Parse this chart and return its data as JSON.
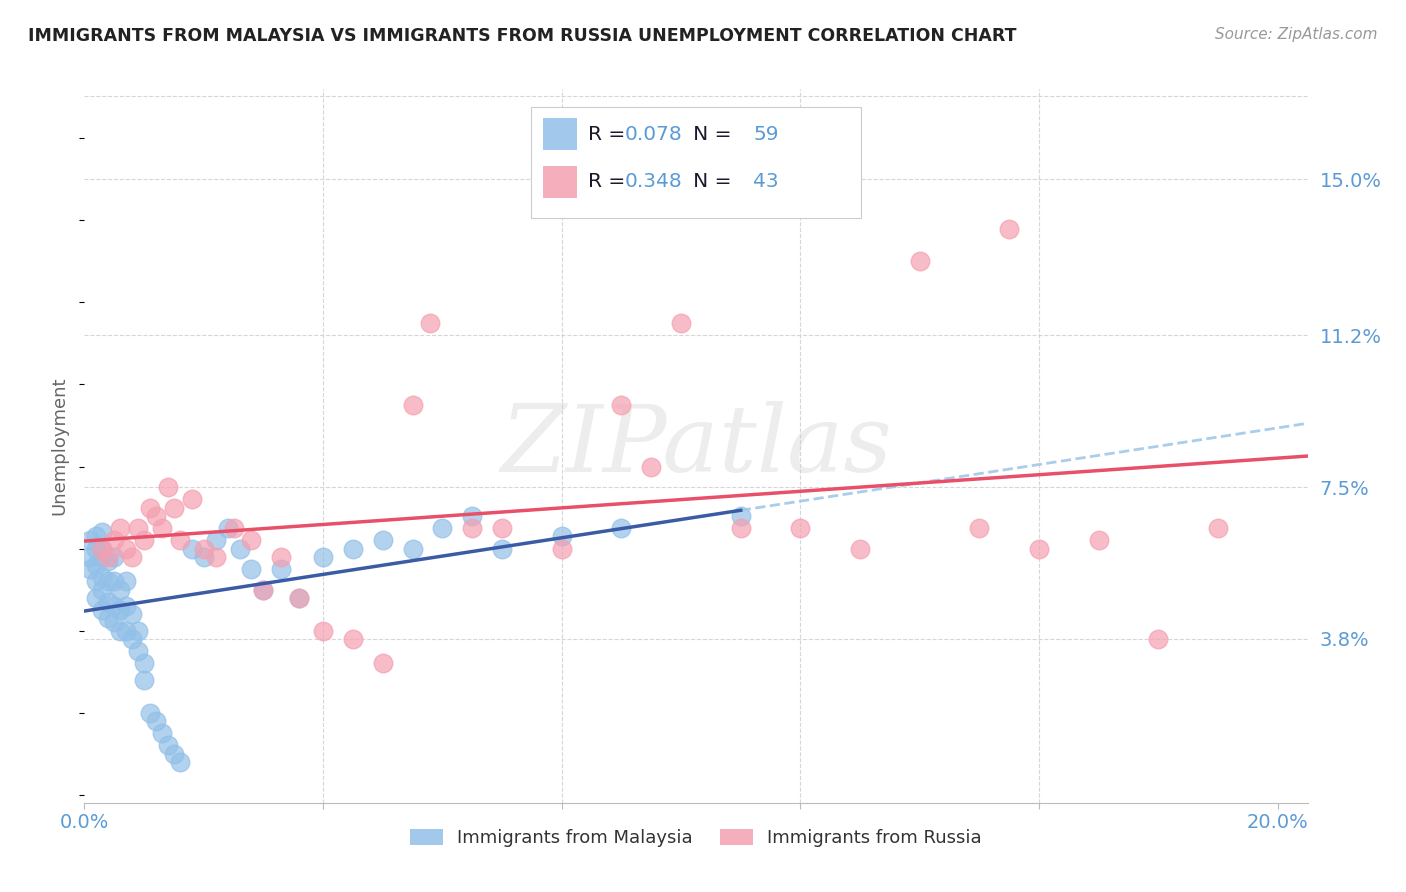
{
  "title": "IMMIGRANTS FROM MALAYSIA VS IMMIGRANTS FROM RUSSIA UNEMPLOYMENT CORRELATION CHART",
  "source": "Source: ZipAtlas.com",
  "ylabel": "Unemployment",
  "watermark": "ZIPatlas",
  "xmin": 0.0,
  "xmax": 0.205,
  "ymin": -0.002,
  "ymax": 0.172,
  "yticks": [
    0.038,
    0.075,
    0.112,
    0.15
  ],
  "ytick_labels": [
    "3.8%",
    "7.5%",
    "11.2%",
    "15.0%"
  ],
  "xticks": [
    0.0,
    0.04,
    0.08,
    0.12,
    0.16,
    0.2
  ],
  "xtick_labels": [
    "0.0%",
    "",
    "",
    "",
    "",
    "20.0%"
  ],
  "malaysia_color": "#92C0E8",
  "russia_color": "#F4A0B0",
  "malaysia_line_color": "#3B5BA5",
  "russia_line_color": "#E8506A",
  "dashed_line_color": "#A0C8E8",
  "malaysia_R": 0.078,
  "malaysia_N": 59,
  "russia_R": 0.348,
  "russia_N": 43,
  "malaysia_x": [
    0.001,
    0.001,
    0.001,
    0.002,
    0.002,
    0.002,
    0.002,
    0.002,
    0.003,
    0.003,
    0.003,
    0.003,
    0.003,
    0.003,
    0.004,
    0.004,
    0.004,
    0.004,
    0.005,
    0.005,
    0.005,
    0.005,
    0.006,
    0.006,
    0.006,
    0.007,
    0.007,
    0.007,
    0.008,
    0.008,
    0.009,
    0.009,
    0.01,
    0.01,
    0.011,
    0.012,
    0.013,
    0.014,
    0.015,
    0.016,
    0.018,
    0.02,
    0.022,
    0.024,
    0.026,
    0.028,
    0.03,
    0.033,
    0.036,
    0.04,
    0.045,
    0.05,
    0.055,
    0.06,
    0.065,
    0.07,
    0.08,
    0.09,
    0.11
  ],
  "malaysia_y": [
    0.055,
    0.058,
    0.062,
    0.048,
    0.052,
    0.056,
    0.06,
    0.063,
    0.045,
    0.05,
    0.053,
    0.058,
    0.06,
    0.064,
    0.043,
    0.047,
    0.052,
    0.057,
    0.042,
    0.046,
    0.052,
    0.058,
    0.04,
    0.045,
    0.05,
    0.04,
    0.046,
    0.052,
    0.038,
    0.044,
    0.035,
    0.04,
    0.028,
    0.032,
    0.02,
    0.018,
    0.015,
    0.012,
    0.01,
    0.008,
    0.06,
    0.058,
    0.062,
    0.065,
    0.06,
    0.055,
    0.05,
    0.055,
    0.048,
    0.058,
    0.06,
    0.062,
    0.06,
    0.065,
    0.068,
    0.06,
    0.063,
    0.065,
    0.068
  ],
  "russia_x": [
    0.003,
    0.004,
    0.005,
    0.006,
    0.007,
    0.008,
    0.009,
    0.01,
    0.011,
    0.012,
    0.013,
    0.014,
    0.015,
    0.016,
    0.018,
    0.02,
    0.022,
    0.025,
    0.028,
    0.03,
    0.033,
    0.036,
    0.04,
    0.045,
    0.05,
    0.055,
    0.058,
    0.065,
    0.07,
    0.08,
    0.09,
    0.095,
    0.1,
    0.11,
    0.12,
    0.13,
    0.14,
    0.15,
    0.155,
    0.16,
    0.17,
    0.18,
    0.19
  ],
  "russia_y": [
    0.06,
    0.058,
    0.062,
    0.065,
    0.06,
    0.058,
    0.065,
    0.062,
    0.07,
    0.068,
    0.065,
    0.075,
    0.07,
    0.062,
    0.072,
    0.06,
    0.058,
    0.065,
    0.062,
    0.05,
    0.058,
    0.048,
    0.04,
    0.038,
    0.032,
    0.095,
    0.115,
    0.065,
    0.065,
    0.06,
    0.095,
    0.08,
    0.115,
    0.065,
    0.065,
    0.06,
    0.13,
    0.065,
    0.138,
    0.06,
    0.062,
    0.038,
    0.065
  ],
  "background_color": "#FFFFFF",
  "grid_color": "#CCCCCC",
  "title_color": "#222222",
  "tick_label_color": "#5B9BD5",
  "legend_text_color": "#1A1A2E",
  "legend_value_color": "#5B9BD5"
}
